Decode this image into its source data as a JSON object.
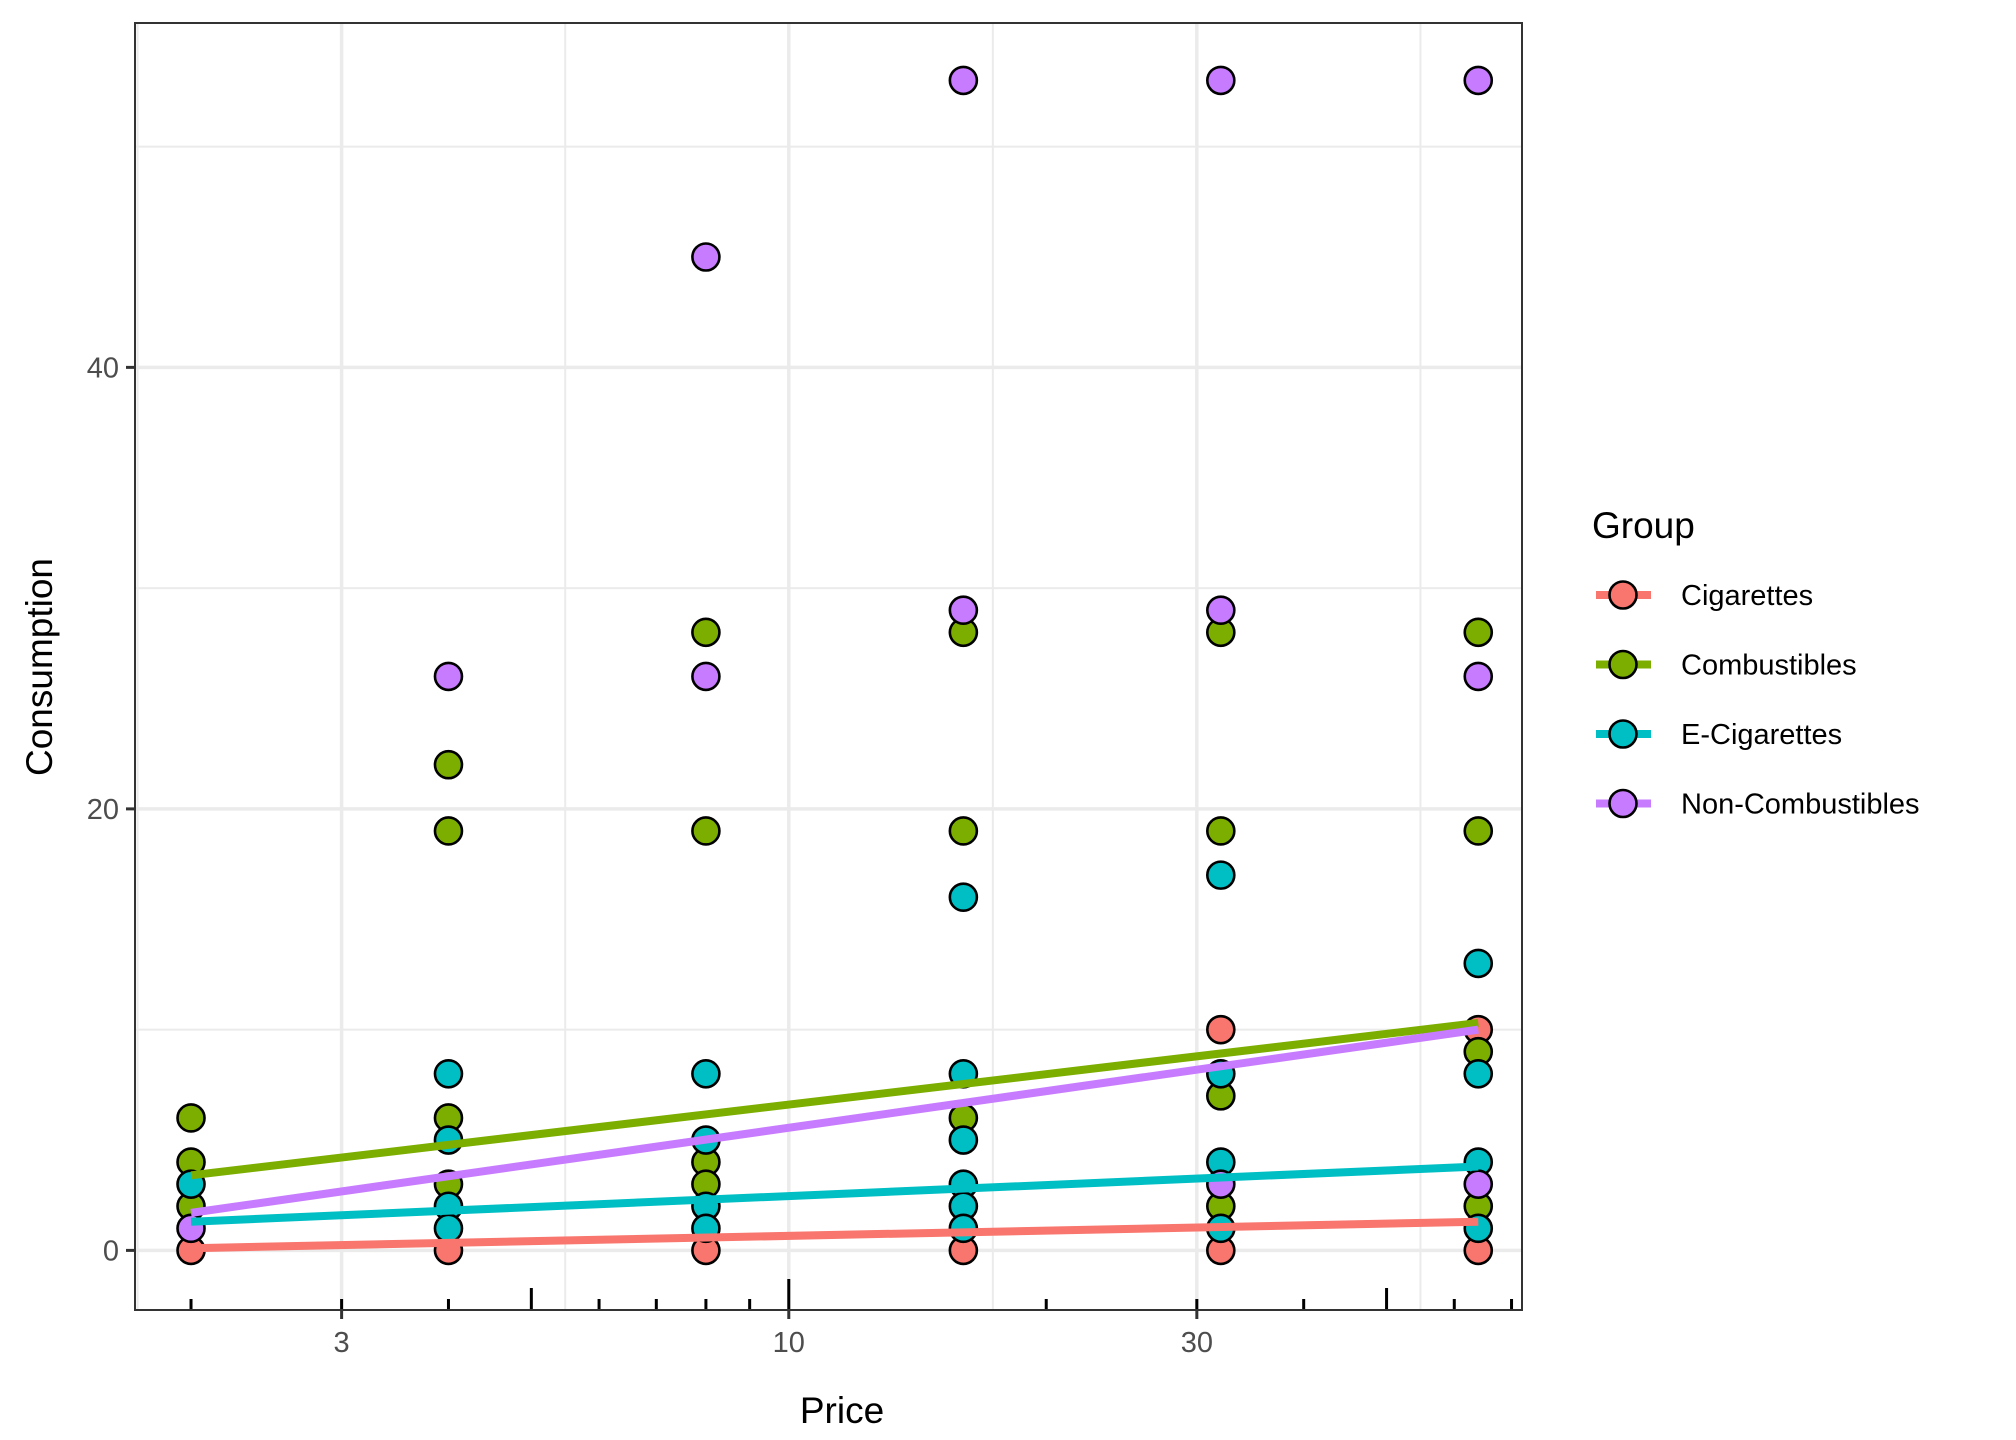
{
  "chart_data": {
    "type": "scatter",
    "title": "",
    "xlabel": "Price",
    "ylabel": "Consumption",
    "x_scale": "log10",
    "xlim": [
      1.72,
      72
    ],
    "ylim": [
      -2.7,
      55.6
    ],
    "x_ticks": [
      3,
      10,
      30
    ],
    "x_tick_labels": [
      "3",
      "10",
      "30"
    ],
    "y_ticks": [
      0,
      20,
      40
    ],
    "y_tick_labels": [
      "0",
      "20",
      "40"
    ],
    "y_minor_gridlines": [
      10,
      30,
      50
    ],
    "grid": true,
    "log_ticks": true,
    "legend": {
      "title": "Group",
      "placement": "right"
    },
    "series": [
      {
        "name": "Cigarettes",
        "color": "#F8766D",
        "points": [
          [
            2,
            0
          ],
          [
            4,
            0
          ],
          [
            8,
            0
          ],
          [
            16,
            0
          ],
          [
            32,
            0
          ],
          [
            32,
            10
          ],
          [
            64,
            0
          ],
          [
            64,
            10
          ]
        ],
        "fit_line": [
          [
            2,
            0.1
          ],
          [
            64,
            1.3
          ]
        ]
      },
      {
        "name": "Combustibles",
        "color": "#7CAE00",
        "points": [
          [
            2,
            6
          ],
          [
            2,
            4
          ],
          [
            2,
            2
          ],
          [
            4,
            22
          ],
          [
            4,
            19
          ],
          [
            4,
            6
          ],
          [
            4,
            3
          ],
          [
            8,
            28
          ],
          [
            8,
            19
          ],
          [
            8,
            4
          ],
          [
            8,
            3
          ],
          [
            16,
            28
          ],
          [
            16,
            19
          ],
          [
            16,
            6
          ],
          [
            32,
            28
          ],
          [
            32,
            19
          ],
          [
            32,
            7
          ],
          [
            32,
            2
          ],
          [
            64,
            28
          ],
          [
            64,
            19
          ],
          [
            64,
            9
          ],
          [
            64,
            2
          ]
        ],
        "fit_line": [
          [
            2,
            3.4
          ],
          [
            64,
            10.3
          ]
        ]
      },
      {
        "name": "E-Cigarettes",
        "color": "#00BFC4",
        "points": [
          [
            2,
            3
          ],
          [
            4,
            8
          ],
          [
            4,
            5
          ],
          [
            4,
            2
          ],
          [
            4,
            1
          ],
          [
            8,
            8
          ],
          [
            8,
            5
          ],
          [
            8,
            2
          ],
          [
            8,
            1
          ],
          [
            16,
            16
          ],
          [
            16,
            8
          ],
          [
            16,
            5
          ],
          [
            16,
            3
          ],
          [
            16,
            2
          ],
          [
            16,
            1
          ],
          [
            32,
            17
          ],
          [
            32,
            8
          ],
          [
            32,
            4
          ],
          [
            32,
            1
          ],
          [
            64,
            13
          ],
          [
            64,
            8
          ],
          [
            64,
            4
          ],
          [
            64,
            1
          ]
        ],
        "fit_line": [
          [
            2,
            1.3
          ],
          [
            64,
            3.8
          ]
        ]
      },
      {
        "name": "Non-Combustibles",
        "color": "#C77CFF",
        "points": [
          [
            2,
            1
          ],
          [
            4,
            26
          ],
          [
            8,
            45
          ],
          [
            8,
            26
          ],
          [
            16,
            53
          ],
          [
            16,
            29
          ],
          [
            32,
            53
          ],
          [
            32,
            29
          ],
          [
            32,
            3
          ],
          [
            64,
            53
          ],
          [
            64,
            26
          ],
          [
            64,
            3
          ]
        ],
        "fit_line": [
          [
            2,
            1.7
          ],
          [
            64,
            10.0
          ]
        ]
      }
    ]
  }
}
